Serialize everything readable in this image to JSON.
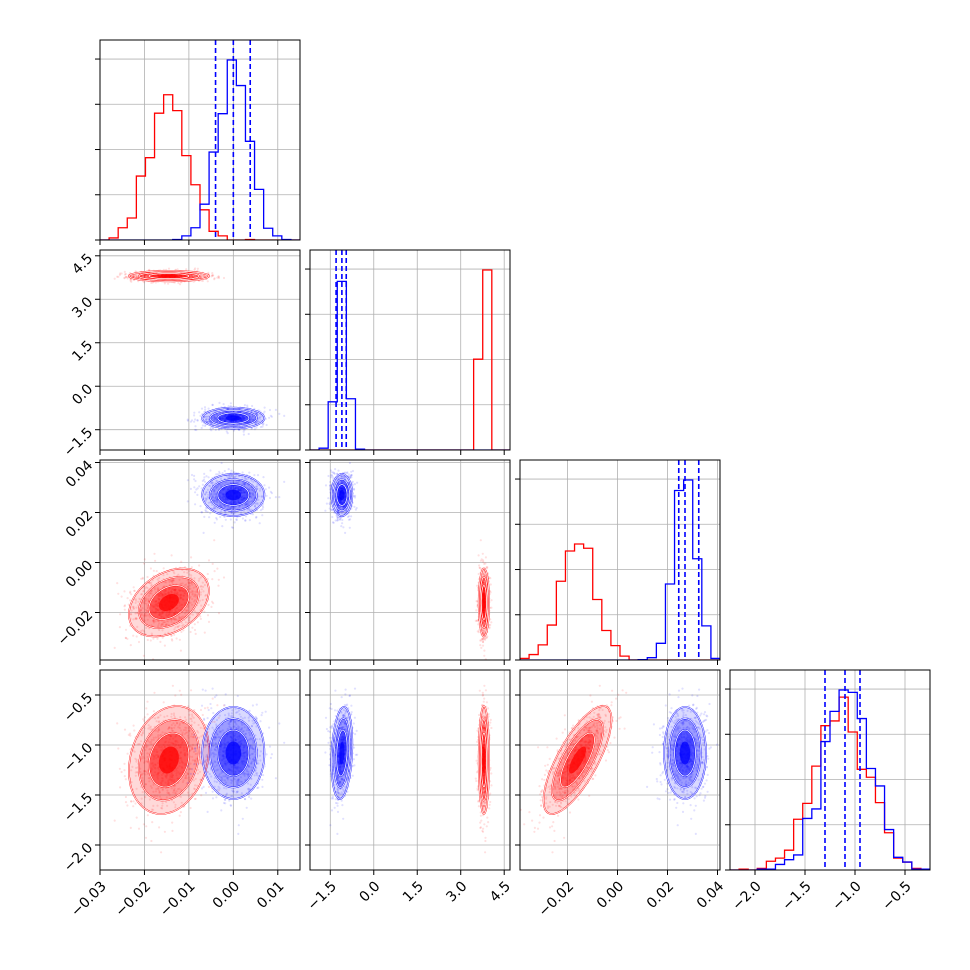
{
  "chart_data": {
    "type": "corner",
    "colors": {
      "series_a": "#ff0000",
      "series_b": "#0000ff"
    },
    "dimensions": [
      {
        "range": [
          -0.03,
          0.015
        ],
        "ticks": [
          "−0.03",
          "−0.02",
          "−0.01",
          "0.00",
          "0.01"
        ],
        "tick_values": [
          -0.03,
          -0.02,
          -0.01,
          0.0,
          0.01
        ]
      },
      {
        "range": [
          -2.2,
          4.7
        ],
        "ticks": [
          "−1.5",
          "0.0",
          "1.5",
          "3.0",
          "4.5"
        ],
        "tick_values": [
          -1.5,
          0.0,
          1.5,
          3.0,
          4.5
        ]
      },
      {
        "range": [
          -0.039,
          0.041
        ],
        "ticks": [
          "−0.02",
          "0.00",
          "0.02",
          "0.04"
        ],
        "tick_values": [
          -0.02,
          0.0,
          0.02,
          0.04
        ]
      },
      {
        "range": [
          -2.25,
          -0.25
        ],
        "ticks": [
          "−2.0",
          "−1.5",
          "−1.0",
          "−0.5"
        ],
        "tick_values": [
          -2.0,
          -1.5,
          -1.0,
          -0.5
        ]
      }
    ],
    "series": [
      {
        "color": "#ff0000",
        "means": [
          -0.0145,
          3.8,
          -0.016,
          -1.15
        ],
        "sigmas": [
          0.0045,
          0.09,
          0.0068,
          0.27
        ],
        "correlations": {
          "0-3": 0.2,
          "2-3": 0.75,
          "0-2": 0.35
        }
      },
      {
        "color": "#0000ff",
        "means": [
          0.0,
          -1.1,
          0.027,
          -1.08
        ],
        "sigmas": [
          0.0035,
          0.18,
          0.0042,
          0.23
        ],
        "correlations": {
          "1-3": 0.2
        },
        "quantile_lines": [
          [
            -0.004,
            0.0,
            0.0038
          ],
          [
            -1.3,
            -1.1,
            -0.95
          ],
          [
            0.0245,
            0.027,
            0.0325
          ],
          [
            -1.3,
            -1.1,
            -0.95
          ]
        ]
      }
    ]
  }
}
